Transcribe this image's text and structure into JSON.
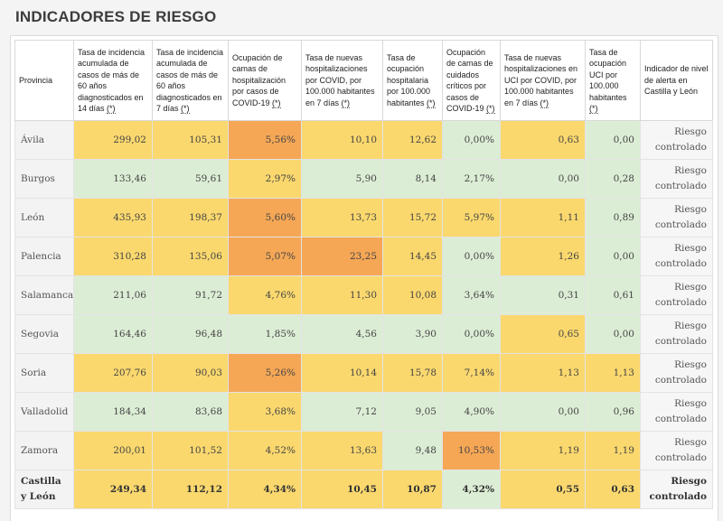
{
  "title": "INDICADORES DE RIESGO",
  "colors": {
    "green": "#dcedd5",
    "yellow": "#fad86e",
    "orange": "#f5a756"
  },
  "headers": [
    {
      "text": "Provincia",
      "note": ""
    },
    {
      "text": "Tasa de incidencia acumulada de casos de más de 60 años diagnosticados en 14 días ",
      "note": "(*)"
    },
    {
      "text": "Tasa de incidencia acumulada de casos de más de 60 años diagnosticados en 7 días ",
      "note": "(*)"
    },
    {
      "text": "Ocupación de camas de hospitalización por casos de COVID-19 ",
      "note": "(*)"
    },
    {
      "text": "Tasa de nuevas hospitalizaciones por COVID, por 100.000 habitantes en 7 días ",
      "note": "(*)"
    },
    {
      "text": "Tasa de ocupación hospitalaria por 100.000 habitantes ",
      "note": "(*)"
    },
    {
      "text": "Ocupación de camas de cuidados críticos por casos de COVID-19 ",
      "note": "(*)"
    },
    {
      "text": "Tasa de nuevas hospitalizaciones en UCI por COVID, por 100.000 habitantes en 7 días ",
      "note": "(*)"
    },
    {
      "text": "Tasa de ocupación UCI por 100.000 habitantes ",
      "note": "(*)"
    },
    {
      "text": "Indicador de nivel de alerta en Castilla y León",
      "note": ""
    }
  ],
  "rows": [
    {
      "provincia": "Ávila",
      "values": [
        "299,02",
        "105,31",
        "5,56%",
        "10,10",
        "12,62",
        "0,00%",
        "0,63",
        "0,00"
      ],
      "levels": [
        "y",
        "y",
        "o",
        "y",
        "y",
        "g",
        "y",
        "g"
      ],
      "nivel": "Riesgo controlado"
    },
    {
      "provincia": "Burgos",
      "values": [
        "133,46",
        "59,61",
        "2,97%",
        "5,90",
        "8,14",
        "2,17%",
        "0,00",
        "0,28"
      ],
      "levels": [
        "g",
        "g",
        "y",
        "g",
        "g",
        "g",
        "g",
        "g"
      ],
      "nivel": "Riesgo controlado"
    },
    {
      "provincia": "León",
      "values": [
        "435,93",
        "198,37",
        "5,60%",
        "13,73",
        "15,72",
        "5,97%",
        "1,11",
        "0,89"
      ],
      "levels": [
        "y",
        "y",
        "o",
        "y",
        "y",
        "y",
        "y",
        "g"
      ],
      "nivel": "Riesgo controlado"
    },
    {
      "provincia": "Palencia",
      "values": [
        "310,28",
        "135,06",
        "5,07%",
        "23,25",
        "14,45",
        "0,00%",
        "1,26",
        "0,00"
      ],
      "levels": [
        "y",
        "y",
        "o",
        "o",
        "y",
        "g",
        "y",
        "g"
      ],
      "nivel": "Riesgo controlado"
    },
    {
      "provincia": "Salamanca",
      "values": [
        "211,06",
        "91,72",
        "4,76%",
        "11,30",
        "10,08",
        "3,64%",
        "0,31",
        "0,61"
      ],
      "levels": [
        "g",
        "g",
        "y",
        "y",
        "y",
        "g",
        "g",
        "g"
      ],
      "nivel": "Riesgo controlado"
    },
    {
      "provincia": "Segovia",
      "values": [
        "164,46",
        "96,48",
        "1,85%",
        "4,56",
        "3,90",
        "0,00%",
        "0,65",
        "0,00"
      ],
      "levels": [
        "g",
        "g",
        "g",
        "g",
        "g",
        "g",
        "y",
        "g"
      ],
      "nivel": "Riesgo controlado"
    },
    {
      "provincia": "Soria",
      "values": [
        "207,76",
        "90,03",
        "5,26%",
        "10,14",
        "15,78",
        "7,14%",
        "1,13",
        "1,13"
      ],
      "levels": [
        "y",
        "y",
        "o",
        "y",
        "y",
        "y",
        "y",
        "y"
      ],
      "nivel": "Riesgo controlado"
    },
    {
      "provincia": "Valladolid",
      "values": [
        "184,34",
        "83,68",
        "3,68%",
        "7,12",
        "9,05",
        "4,90%",
        "0,00",
        "0,96"
      ],
      "levels": [
        "g",
        "g",
        "y",
        "g",
        "g",
        "g",
        "g",
        "g"
      ],
      "nivel": "Riesgo controlado"
    },
    {
      "provincia": "Zamora",
      "values": [
        "200,01",
        "101,52",
        "4,52%",
        "13,63",
        "9,48",
        "10,53%",
        "1,19",
        "1,19"
      ],
      "levels": [
        "y",
        "y",
        "y",
        "y",
        "g",
        "o",
        "y",
        "y"
      ],
      "nivel": "Riesgo controlado"
    }
  ],
  "total": {
    "provincia": "Castilla y León",
    "values": [
      "249,34",
      "112,12",
      "4,34%",
      "10,45",
      "10,87",
      "4,32%",
      "0,55",
      "0,63"
    ],
    "levels": [
      "y",
      "y",
      "y",
      "y",
      "y",
      "g",
      "y",
      "y"
    ],
    "nivel": "Riesgo controlado"
  }
}
